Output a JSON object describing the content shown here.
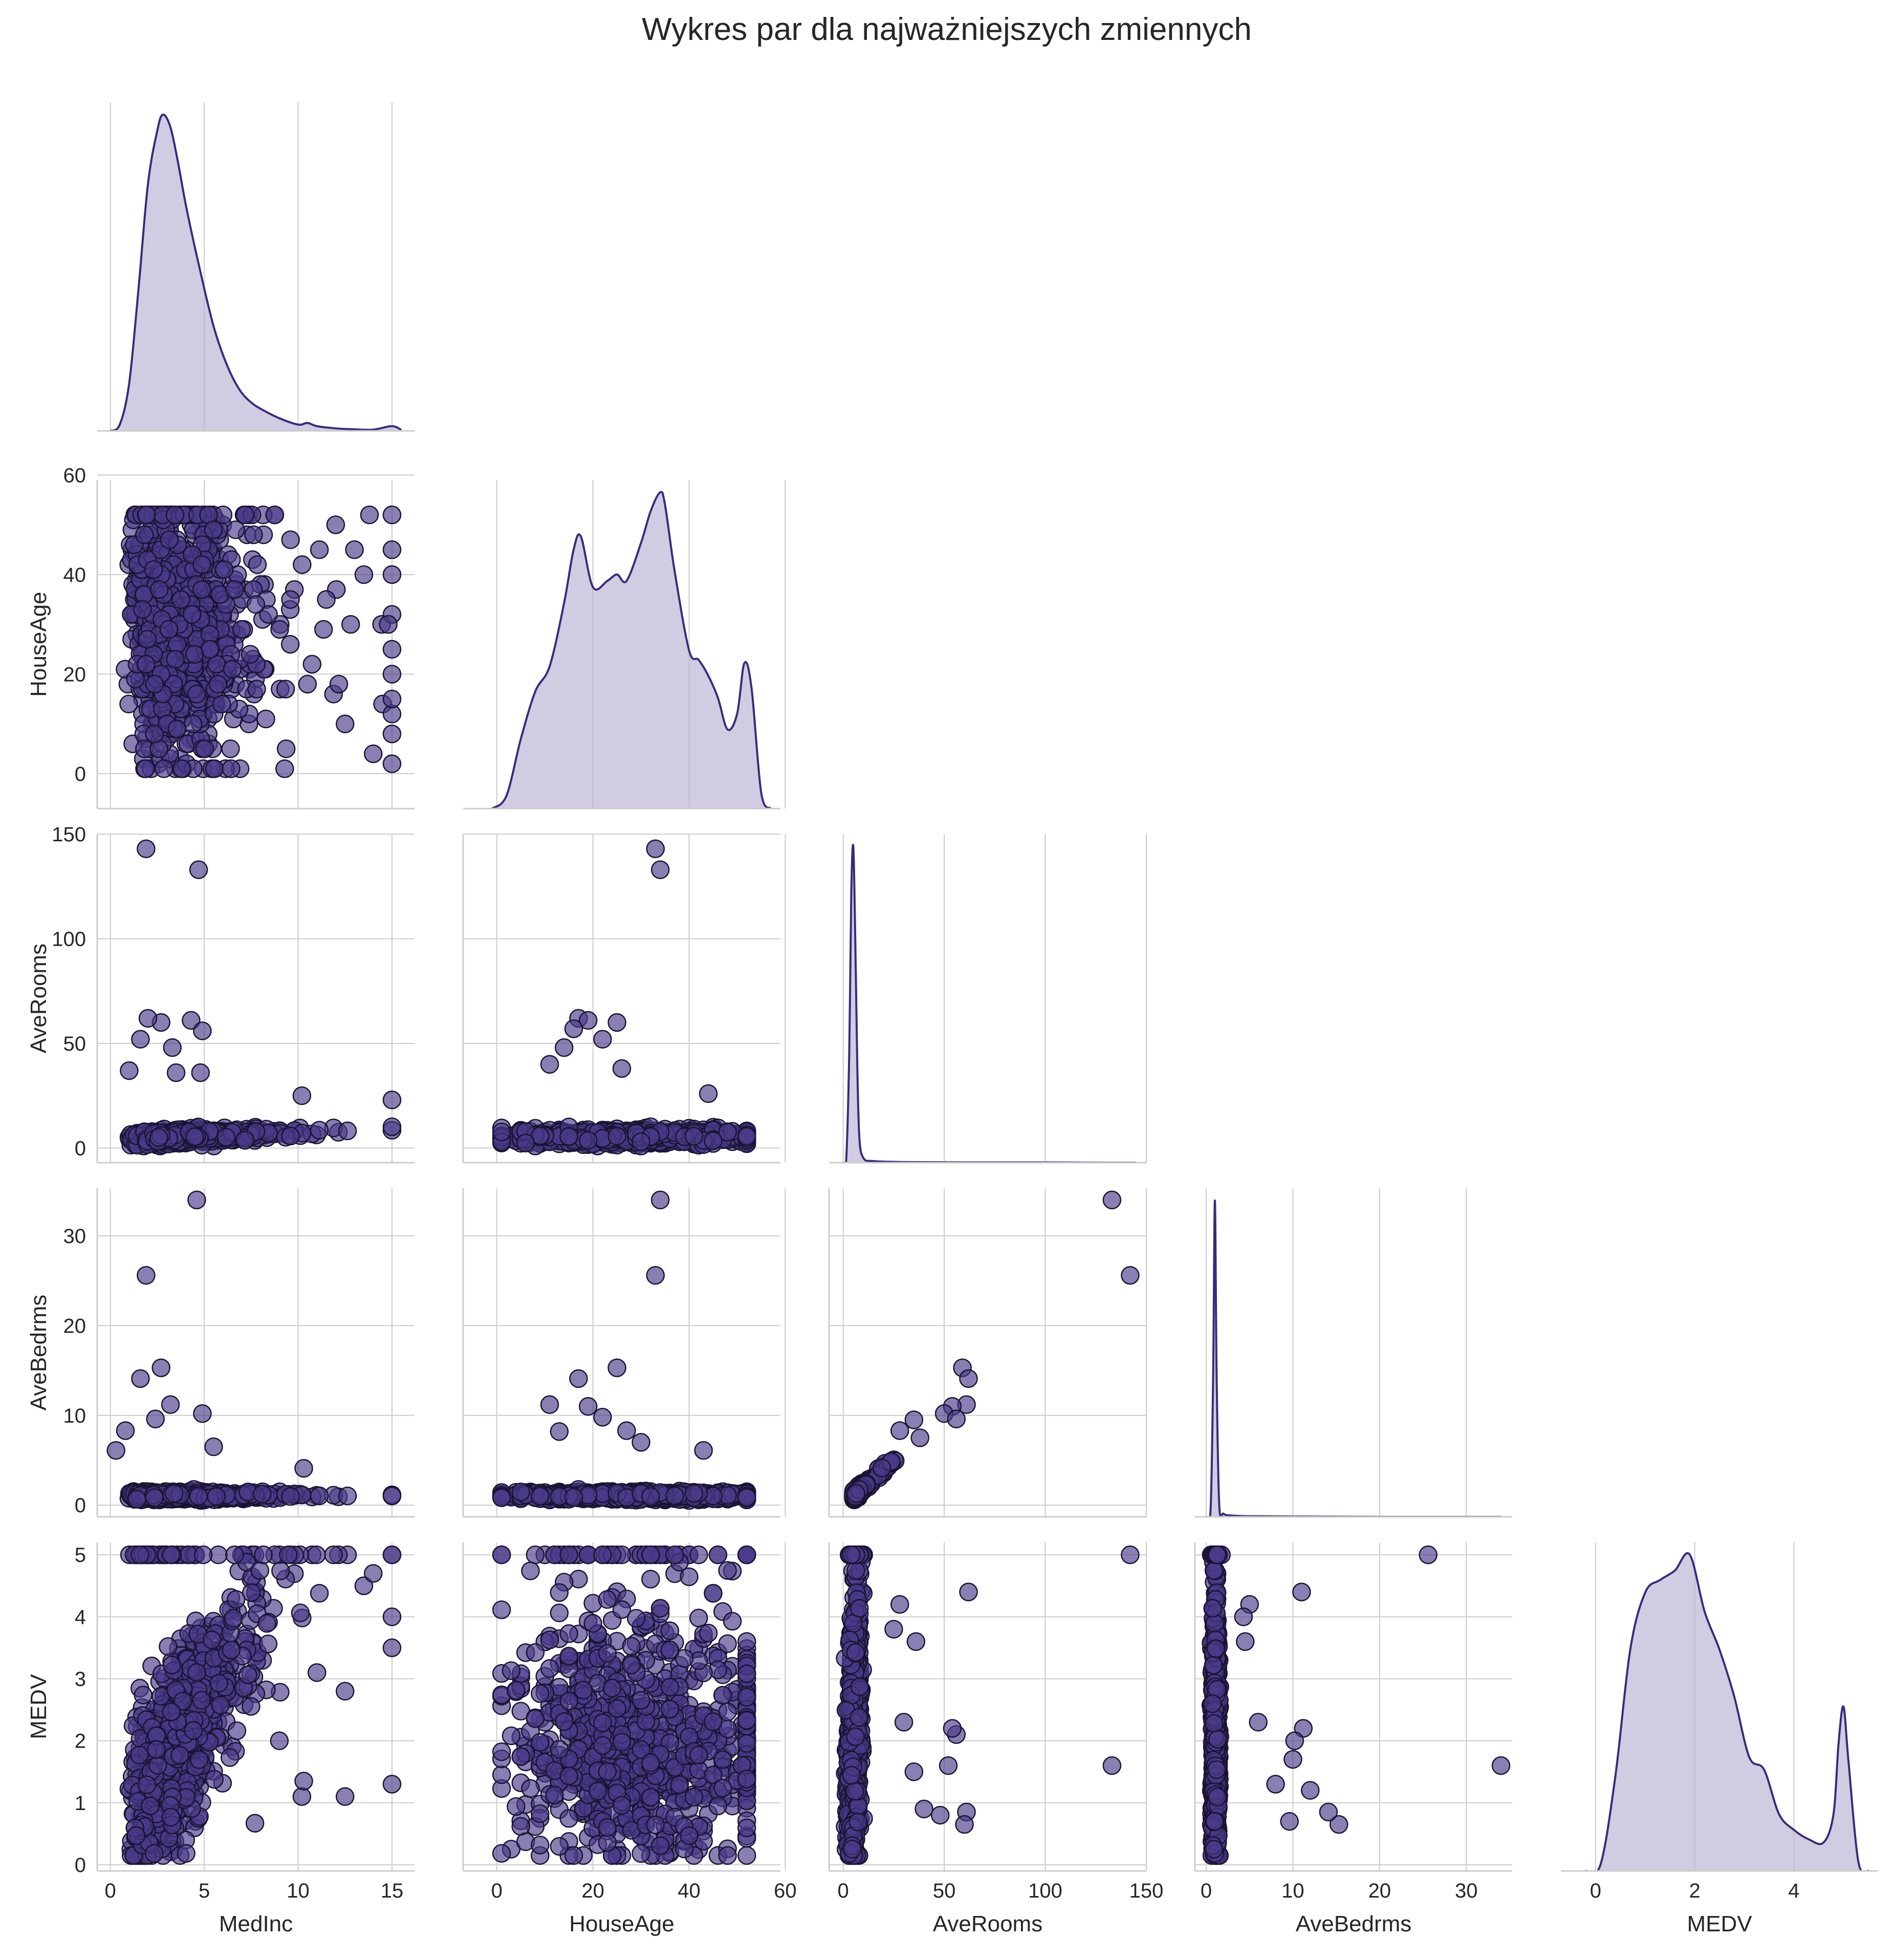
{
  "chart_data": {
    "type": "pairplot",
    "title": "Wykres par dla najważniejszych zmiennych",
    "layout": "lower-triangle (corner)",
    "grid": true,
    "colors": {
      "marker": "#4b3a8a",
      "edge": "#1a1433",
      "kde_fill": "#b9b1d3",
      "kde_line": "#3a2a7a"
    },
    "variables": [
      {
        "name": "MedInc",
        "range": [
          -0.7,
          16.2
        ],
        "ticks": [
          0,
          5,
          10,
          15
        ]
      },
      {
        "name": "HouseAge",
        "range": [
          -7,
          59
        ],
        "ticks": [
          0,
          20,
          40,
          60
        ]
      },
      {
        "name": "AveRooms",
        "range": [
          -7,
          150
        ],
        "ticks": [
          0,
          50,
          100,
          150
        ]
      },
      {
        "name": "AveBedrms",
        "range": [
          -1.3,
          35.3
        ],
        "ticks": [
          0,
          10,
          20,
          30
        ],
        "yticks": [
          0,
          10,
          20,
          30
        ]
      },
      {
        "name": "MEDV",
        "range": [
          -0.7,
          5.7
        ],
        "ticks": [
          0,
          2,
          4
        ],
        "yrange": [
          -0.1,
          5.2
        ],
        "yticks": [
          0,
          1,
          2,
          3,
          4,
          5
        ]
      }
    ],
    "diagonal_kde": {
      "MedInc": {
        "x": [
          0.0,
          0.5,
          1.0,
          1.5,
          2.0,
          2.5,
          2.8,
          3.2,
          3.6,
          4.0,
          4.5,
          5.0,
          5.5,
          6.0,
          6.5,
          7.0,
          7.5,
          8.0,
          9.0,
          10.0,
          10.5,
          11.0,
          12.0,
          13.0,
          14.0,
          15.0,
          15.5
        ],
        "y": [
          0.0,
          0.02,
          0.15,
          0.45,
          0.78,
          0.95,
          1.0,
          0.96,
          0.85,
          0.72,
          0.58,
          0.45,
          0.33,
          0.24,
          0.17,
          0.12,
          0.09,
          0.07,
          0.04,
          0.02,
          0.025,
          0.015,
          0.008,
          0.005,
          0.004,
          0.015,
          0.003
        ]
      },
      "HouseAge": {
        "x": [
          -1,
          2,
          5,
          8,
          11,
          14,
          16,
          17.5,
          20,
          23,
          25,
          27,
          30,
          32,
          34,
          35,
          37,
          40,
          42,
          44,
          46,
          48,
          50,
          51.5,
          53,
          55,
          57
        ],
        "y": [
          0.0,
          0.04,
          0.22,
          0.37,
          0.45,
          0.65,
          0.82,
          0.86,
          0.7,
          0.72,
          0.74,
          0.72,
          0.84,
          0.94,
          1.0,
          0.96,
          0.75,
          0.5,
          0.47,
          0.42,
          0.35,
          0.25,
          0.3,
          0.46,
          0.38,
          0.05,
          0.0
        ]
      },
      "AveRooms": {
        "x": [
          0,
          1.5,
          3,
          4,
          5,
          6,
          7,
          8,
          10,
          15,
          30,
          60,
          100,
          130,
          145
        ],
        "y": [
          0.0,
          0.01,
          0.35,
          0.85,
          1.0,
          0.7,
          0.3,
          0.08,
          0.015,
          0.005,
          0.002,
          0.001,
          0.001,
          0.0,
          0.0
        ]
      },
      "AveBedrms": {
        "x": [
          0,
          0.5,
          0.8,
          1.0,
          1.2,
          1.5,
          2.0,
          3.0,
          5.0,
          10.0,
          20.0,
          34.0
        ],
        "y": [
          0.0,
          0.02,
          0.45,
          1.0,
          0.45,
          0.04,
          0.01,
          0.004,
          0.002,
          0.001,
          0.0,
          0.0
        ]
      },
      "MEDV": {
        "x": [
          -0.2,
          0.1,
          0.4,
          0.7,
          1.0,
          1.3,
          1.6,
          1.9,
          2.2,
          2.5,
          2.8,
          3.1,
          3.4,
          3.7,
          4.0,
          4.3,
          4.6,
          4.8,
          4.9,
          5.0,
          5.1,
          5.3,
          5.5
        ],
        "y": [
          0.0,
          0.02,
          0.3,
          0.7,
          0.88,
          0.92,
          0.95,
          1.0,
          0.82,
          0.7,
          0.55,
          0.36,
          0.32,
          0.18,
          0.13,
          0.1,
          0.09,
          0.18,
          0.4,
          0.52,
          0.35,
          0.03,
          0.0
        ]
      }
    },
    "scatter_outliers": [
      {
        "x": "MedInc",
        "y": "HouseAge",
        "points": [
          [
            15,
            8
          ],
          [
            15,
            2
          ],
          [
            15,
            20
          ],
          [
            15,
            25
          ],
          [
            14.8,
            30
          ],
          [
            14.5,
            14
          ],
          [
            13.5,
            40
          ],
          [
            13,
            45
          ],
          [
            12.5,
            10
          ],
          [
            12,
            50
          ],
          [
            11.5,
            35
          ],
          [
            10.5,
            18
          ],
          [
            14,
            4
          ],
          [
            15,
            12
          ],
          [
            15,
            15
          ],
          [
            15,
            40
          ],
          [
            15,
            45
          ],
          [
            15,
            52
          ],
          [
            13.8,
            52
          ],
          [
            12.8,
            30
          ]
        ]
      },
      {
        "x": "MedInc",
        "y": "AveRooms",
        "points": [
          [
            1.9,
            143
          ],
          [
            4.7,
            133
          ],
          [
            2.7,
            60
          ],
          [
            2.0,
            62
          ],
          [
            4.3,
            61
          ],
          [
            4.9,
            56
          ],
          [
            1.6,
            52
          ],
          [
            3.3,
            48
          ],
          [
            1.0,
            37
          ],
          [
            3.5,
            36
          ],
          [
            4.8,
            36
          ],
          [
            10.2,
            25
          ],
          [
            15,
            23
          ]
        ]
      },
      {
        "x": "HouseAge",
        "y": "AveRooms",
        "points": [
          [
            33,
            143
          ],
          [
            34,
            133
          ],
          [
            17,
            62
          ],
          [
            19,
            61
          ],
          [
            16,
            57
          ],
          [
            25,
            60
          ],
          [
            22,
            52
          ],
          [
            14,
            48
          ],
          [
            11,
            40
          ],
          [
            26,
            38
          ],
          [
            44,
            26
          ]
        ]
      },
      {
        "x": "MedInc",
        "y": "AveBedrms",
        "points": [
          [
            4.6,
            34
          ],
          [
            1.9,
            25.6
          ],
          [
            2.7,
            15.3
          ],
          [
            1.6,
            14.1
          ],
          [
            3.2,
            11.2
          ],
          [
            4.9,
            10.2
          ],
          [
            2.4,
            9.6
          ],
          [
            0.8,
            8.3
          ],
          [
            0.3,
            6.1
          ],
          [
            5.5,
            6.5
          ],
          [
            10.3,
            4.1
          ]
        ]
      },
      {
        "x": "HouseAge",
        "y": "AveBedrms",
        "points": [
          [
            34,
            34
          ],
          [
            33,
            25.6
          ],
          [
            25,
            15.3
          ],
          [
            17,
            14.1
          ],
          [
            11,
            11.2
          ],
          [
            19,
            11
          ],
          [
            22,
            9.8
          ],
          [
            27,
            8.3
          ],
          [
            13,
            8.2
          ],
          [
            43,
            6.1
          ],
          [
            30,
            7
          ]
        ]
      },
      {
        "x": "AveRooms",
        "y": "AveBedrms",
        "points": [
          [
            133,
            34
          ],
          [
            142,
            25.6
          ],
          [
            59,
            15.3
          ],
          [
            62,
            14.1
          ],
          [
            61,
            11.2
          ],
          [
            54,
            11
          ],
          [
            50,
            10.2
          ],
          [
            56,
            9.6
          ],
          [
            35,
            9.5
          ],
          [
            28,
            8.3
          ],
          [
            38,
            7.5
          ]
        ]
      },
      {
        "x": "MedInc",
        "y": "MEDV",
        "points": [
          [
            15,
            4
          ],
          [
            15,
            3.5
          ],
          [
            15,
            1.3
          ],
          [
            12.5,
            1.1
          ],
          [
            10.2,
            1.1
          ],
          [
            10.3,
            1.35
          ],
          [
            12.5,
            2.8
          ],
          [
            11,
            3.1
          ],
          [
            7.7,
            0.67
          ],
          [
            13.5,
            4.5
          ],
          [
            14,
            4.7
          ],
          [
            9,
            2
          ]
        ]
      },
      {
        "x": "AveRooms",
        "y": "MEDV",
        "points": [
          [
            142,
            5
          ],
          [
            133,
            1.6
          ],
          [
            62,
            4.4
          ],
          [
            61,
            0.85
          ],
          [
            60,
            0.65
          ],
          [
            56,
            2.1
          ],
          [
            54,
            2.2
          ],
          [
            52,
            1.6
          ],
          [
            48,
            0.8
          ],
          [
            36,
            3.6
          ],
          [
            28,
            4.2
          ],
          [
            25,
            3.8
          ],
          [
            30,
            2.3
          ],
          [
            35,
            1.5
          ],
          [
            40,
            0.9
          ]
        ]
      },
      {
        "x": "AveBedrms",
        "y": "MEDV",
        "points": [
          [
            25.6,
            5
          ],
          [
            34,
            1.6
          ],
          [
            11,
            4.4
          ],
          [
            11.2,
            2.2
          ],
          [
            10.2,
            2.0
          ],
          [
            10,
            1.7
          ],
          [
            15.3,
            0.65
          ],
          [
            14.1,
            0.85
          ],
          [
            12,
            1.2
          ],
          [
            9.6,
            0.7
          ],
          [
            5,
            4.2
          ],
          [
            4.3,
            4
          ],
          [
            4.5,
            3.6
          ],
          [
            6,
            2.3
          ],
          [
            8,
            1.3
          ]
        ]
      }
    ]
  }
}
